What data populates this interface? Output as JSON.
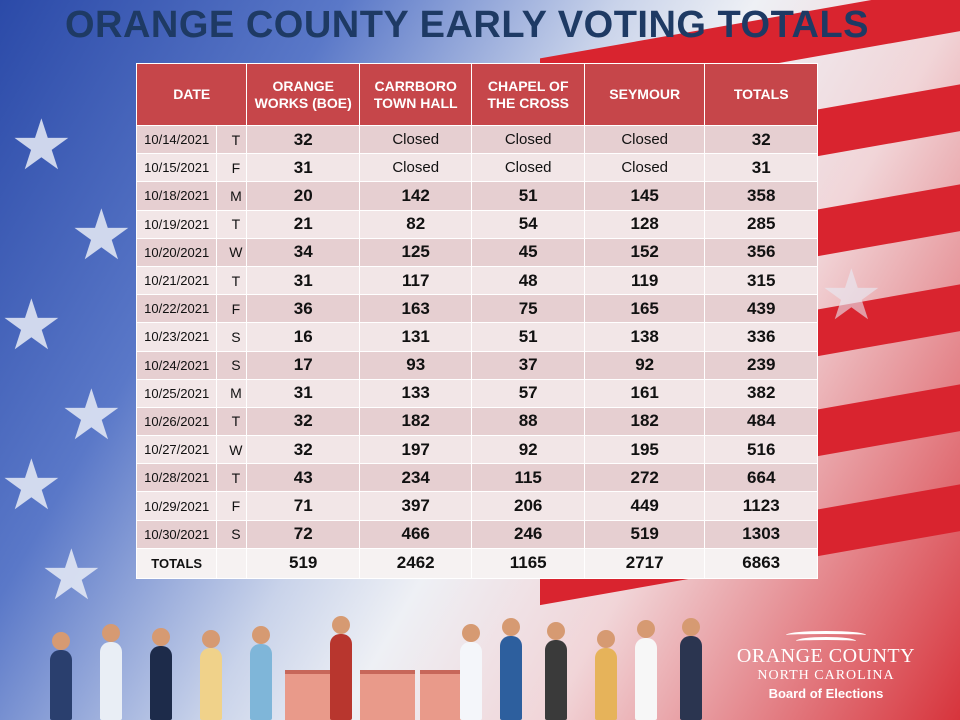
{
  "title": "ORANGE COUNTY EARLY VOTING TOTALS",
  "table": {
    "headers": [
      "DATE",
      "ORANGE WORKS (BOE)",
      "CARRBORO TOWN HALL",
      "CHAPEL OF THE CROSS",
      "SEYMOUR",
      "TOTALS"
    ],
    "rows": [
      {
        "date": "10/14/2021",
        "day": "T",
        "orange": "32",
        "carrboro": "Closed",
        "chapel": "Closed",
        "seymour": "Closed",
        "total": "32"
      },
      {
        "date": "10/15/2021",
        "day": "F",
        "orange": "31",
        "carrboro": "Closed",
        "chapel": "Closed",
        "seymour": "Closed",
        "total": "31"
      },
      {
        "date": "10/18/2021",
        "day": "M",
        "orange": "20",
        "carrboro": "142",
        "chapel": "51",
        "seymour": "145",
        "total": "358"
      },
      {
        "date": "10/19/2021",
        "day": "T",
        "orange": "21",
        "carrboro": "82",
        "chapel": "54",
        "seymour": "128",
        "total": "285"
      },
      {
        "date": "10/20/2021",
        "day": "W",
        "orange": "34",
        "carrboro": "125",
        "chapel": "45",
        "seymour": "152",
        "total": "356"
      },
      {
        "date": "10/21/2021",
        "day": "T",
        "orange": "31",
        "carrboro": "117",
        "chapel": "48",
        "seymour": "119",
        "total": "315"
      },
      {
        "date": "10/22/2021",
        "day": "F",
        "orange": "36",
        "carrboro": "163",
        "chapel": "75",
        "seymour": "165",
        "total": "439"
      },
      {
        "date": "10/23/2021",
        "day": "S",
        "orange": "16",
        "carrboro": "131",
        "chapel": "51",
        "seymour": "138",
        "total": "336"
      },
      {
        "date": "10/24/2021",
        "day": "S",
        "orange": "17",
        "carrboro": "93",
        "chapel": "37",
        "seymour": "92",
        "total": "239"
      },
      {
        "date": "10/25/2021",
        "day": "M",
        "orange": "31",
        "carrboro": "133",
        "chapel": "57",
        "seymour": "161",
        "total": "382"
      },
      {
        "date": "10/26/2021",
        "day": "T",
        "orange": "32",
        "carrboro": "182",
        "chapel": "88",
        "seymour": "182",
        "total": "484"
      },
      {
        "date": "10/27/2021",
        "day": "W",
        "orange": "32",
        "carrboro": "197",
        "chapel": "92",
        "seymour": "195",
        "total": "516"
      },
      {
        "date": "10/28/2021",
        "day": "T",
        "orange": "43",
        "carrboro": "234",
        "chapel": "115",
        "seymour": "272",
        "total": "664"
      },
      {
        "date": "10/29/2021",
        "day": "F",
        "orange": "71",
        "carrboro": "397",
        "chapel": "206",
        "seymour": "449",
        "total": "1123"
      },
      {
        "date": "10/30/2021",
        "day": "S",
        "orange": "72",
        "carrboro": "466",
        "chapel": "246",
        "seymour": "519",
        "total": "1303"
      }
    ],
    "totals": {
      "label": "TOTALS",
      "day": "",
      "orange": "519",
      "carrboro": "2462",
      "chapel": "1165",
      "seymour": "2717",
      "total": "6863"
    }
  },
  "logo": {
    "line1": "ORANGE COUNTY",
    "line2": "NORTH CAROLINA",
    "line3": "Board of Elections"
  },
  "colors": {
    "header_red": "#c6464a",
    "title_navy": "#1e3a64",
    "row_odd": "#e6cfd1",
    "row_even": "#f2e6e7"
  }
}
